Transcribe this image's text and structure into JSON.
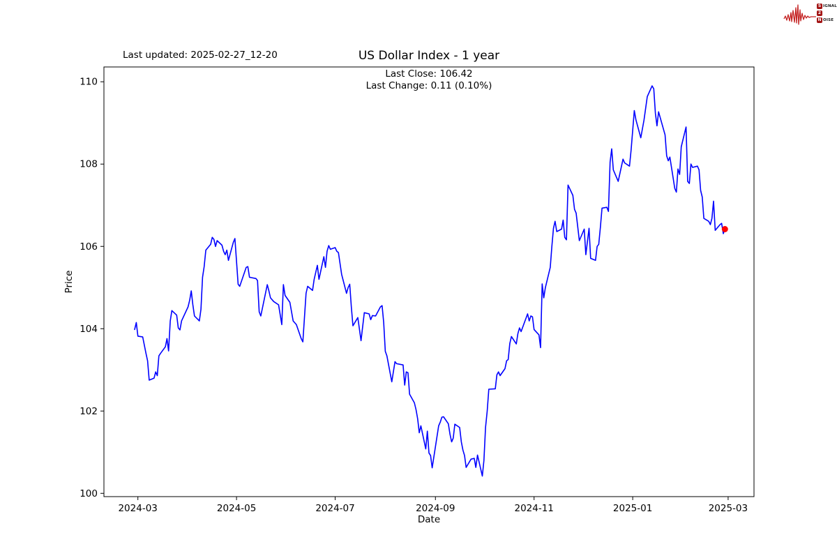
{
  "header": {
    "last_updated": "Last updated: 2025-02-27_12-20",
    "annotation_line1": "Last Close: 106.42",
    "annotation_line2": "Last Change: 0.11 (0.10%)"
  },
  "logo": {
    "line1_initial": "S",
    "line1_rest": "IGNAL",
    "line2": "2",
    "line3_initial": "N",
    "line3_rest": "OISE",
    "badge_color": "#a31515",
    "waveform_color": "#c42222"
  },
  "colors": {
    "line_blue": "#0000ff",
    "marker_red": "#ff0000",
    "axis_black": "#000000"
  },
  "chart_data": {
    "type": "line",
    "title": "US Dollar Index - 1 year",
    "xlabel": "Date",
    "ylabel": "Price",
    "grid": false,
    "legend": "none",
    "ylim": [
      99.92,
      110.36
    ],
    "xlim": [
      "2024-02-09",
      "2025-03-17"
    ],
    "y_ticks": [
      100,
      102,
      104,
      106,
      108,
      110
    ],
    "x_ticks": [
      {
        "date": "2024-03-01",
        "label": "2024-03"
      },
      {
        "date": "2024-05-01",
        "label": "2024-05"
      },
      {
        "date": "2024-07-01",
        "label": "2024-07"
      },
      {
        "date": "2024-09-01",
        "label": "2024-09"
      },
      {
        "date": "2024-11-01",
        "label": "2024-11"
      },
      {
        "date": "2025-01-01",
        "label": "2025-01"
      },
      {
        "date": "2025-03-01",
        "label": "2025-03"
      }
    ],
    "last_close": 106.42,
    "last_change": "0.11 (0.10%)",
    "series": [
      {
        "name": "US Dollar Index",
        "points": [
          [
            "2024-02-28",
            103.98
          ],
          [
            "2024-02-29",
            104.15
          ],
          [
            "2024-03-01",
            103.82
          ],
          [
            "2024-03-04",
            103.8
          ],
          [
            "2024-03-06",
            103.4
          ],
          [
            "2024-03-07",
            103.22
          ],
          [
            "2024-03-08",
            102.75
          ],
          [
            "2024-03-11",
            102.8
          ],
          [
            "2024-03-12",
            102.95
          ],
          [
            "2024-03-13",
            102.86
          ],
          [
            "2024-03-14",
            103.34
          ],
          [
            "2024-03-15",
            103.4
          ],
          [
            "2024-03-18",
            103.56
          ],
          [
            "2024-03-19",
            103.76
          ],
          [
            "2024-03-20",
            103.46
          ],
          [
            "2024-03-21",
            104.19
          ],
          [
            "2024-03-22",
            104.44
          ],
          [
            "2024-03-25",
            104.33
          ],
          [
            "2024-03-26",
            104.02
          ],
          [
            "2024-03-27",
            103.97
          ],
          [
            "2024-03-28",
            104.19
          ],
          [
            "2024-04-01",
            104.53
          ],
          [
            "2024-04-02",
            104.69
          ],
          [
            "2024-04-03",
            104.92
          ],
          [
            "2024-04-04",
            104.58
          ],
          [
            "2024-04-05",
            104.31
          ],
          [
            "2024-04-08",
            104.19
          ],
          [
            "2024-04-09",
            104.47
          ],
          [
            "2024-04-10",
            105.25
          ],
          [
            "2024-04-11",
            105.51
          ],
          [
            "2024-04-12",
            105.91
          ],
          [
            "2024-04-15",
            106.05
          ],
          [
            "2024-04-16",
            106.22
          ],
          [
            "2024-04-17",
            106.17
          ],
          [
            "2024-04-18",
            106.0
          ],
          [
            "2024-04-19",
            106.14
          ],
          [
            "2024-04-22",
            106.03
          ],
          [
            "2024-04-23",
            105.88
          ],
          [
            "2024-04-24",
            105.8
          ],
          [
            "2024-04-25",
            105.91
          ],
          [
            "2024-04-26",
            105.66
          ],
          [
            "2024-04-29",
            106.1
          ],
          [
            "2024-04-30",
            106.19
          ],
          [
            "2024-05-02",
            105.08
          ],
          [
            "2024-05-03",
            105.03
          ],
          [
            "2024-05-07",
            105.49
          ],
          [
            "2024-05-08",
            105.51
          ],
          [
            "2024-05-09",
            105.25
          ],
          [
            "2024-05-13",
            105.22
          ],
          [
            "2024-05-14",
            105.17
          ],
          [
            "2024-05-15",
            104.41
          ],
          [
            "2024-05-16",
            104.31
          ],
          [
            "2024-05-20",
            105.07
          ],
          [
            "2024-05-21",
            104.92
          ],
          [
            "2024-05-22",
            104.75
          ],
          [
            "2024-05-24",
            104.66
          ],
          [
            "2024-05-27",
            104.58
          ],
          [
            "2024-05-29",
            104.1
          ],
          [
            "2024-05-30",
            105.07
          ],
          [
            "2024-05-31",
            104.81
          ],
          [
            "2024-06-03",
            104.64
          ],
          [
            "2024-06-05",
            104.19
          ],
          [
            "2024-06-07",
            104.1
          ],
          [
            "2024-06-10",
            103.76
          ],
          [
            "2024-06-11",
            103.68
          ],
          [
            "2024-06-13",
            104.86
          ],
          [
            "2024-06-14",
            105.03
          ],
          [
            "2024-06-17",
            104.93
          ],
          [
            "2024-06-18",
            105.2
          ],
          [
            "2024-06-20",
            105.54
          ],
          [
            "2024-06-21",
            105.2
          ],
          [
            "2024-06-24",
            105.75
          ],
          [
            "2024-06-25",
            105.49
          ],
          [
            "2024-06-26",
            105.88
          ],
          [
            "2024-06-27",
            106.02
          ],
          [
            "2024-06-28",
            105.93
          ],
          [
            "2024-07-01",
            105.97
          ],
          [
            "2024-07-02",
            105.88
          ],
          [
            "2024-07-03",
            105.85
          ],
          [
            "2024-07-05",
            105.32
          ],
          [
            "2024-07-08",
            104.86
          ],
          [
            "2024-07-09",
            105.0
          ],
          [
            "2024-07-10",
            105.08
          ],
          [
            "2024-07-11",
            104.53
          ],
          [
            "2024-07-12",
            104.07
          ],
          [
            "2024-07-15",
            104.27
          ],
          [
            "2024-07-17",
            103.71
          ],
          [
            "2024-07-19",
            104.39
          ],
          [
            "2024-07-22",
            104.36
          ],
          [
            "2024-07-23",
            104.22
          ],
          [
            "2024-07-24",
            104.32
          ],
          [
            "2024-07-26",
            104.31
          ],
          [
            "2024-07-29",
            104.53
          ],
          [
            "2024-07-30",
            104.56
          ],
          [
            "2024-07-31",
            104.15
          ],
          [
            "2024-08-01",
            103.45
          ],
          [
            "2024-08-02",
            103.34
          ],
          [
            "2024-08-05",
            102.71
          ],
          [
            "2024-08-07",
            103.2
          ],
          [
            "2024-08-08",
            103.15
          ],
          [
            "2024-08-12",
            103.12
          ],
          [
            "2024-08-13",
            102.63
          ],
          [
            "2024-08-14",
            102.95
          ],
          [
            "2024-08-15",
            102.93
          ],
          [
            "2024-08-16",
            102.41
          ],
          [
            "2024-08-19",
            102.2
          ],
          [
            "2024-08-20",
            102.03
          ],
          [
            "2024-08-21",
            101.81
          ],
          [
            "2024-08-22",
            101.47
          ],
          [
            "2024-08-23",
            101.64
          ],
          [
            "2024-08-26",
            101.08
          ],
          [
            "2024-08-27",
            101.51
          ],
          [
            "2024-08-28",
            100.98
          ],
          [
            "2024-08-29",
            100.92
          ],
          [
            "2024-08-30",
            100.62
          ],
          [
            "2024-09-03",
            101.64
          ],
          [
            "2024-09-04",
            101.73
          ],
          [
            "2024-09-05",
            101.85
          ],
          [
            "2024-09-06",
            101.86
          ],
          [
            "2024-09-09",
            101.69
          ],
          [
            "2024-09-10",
            101.44
          ],
          [
            "2024-09-11",
            101.25
          ],
          [
            "2024-09-12",
            101.34
          ],
          [
            "2024-09-13",
            101.68
          ],
          [
            "2024-09-16",
            101.6
          ],
          [
            "2024-09-17",
            101.25
          ],
          [
            "2024-09-18",
            101.05
          ],
          [
            "2024-09-19",
            100.92
          ],
          [
            "2024-09-20",
            100.63
          ],
          [
            "2024-09-23",
            100.83
          ],
          [
            "2024-09-25",
            100.85
          ],
          [
            "2024-09-26",
            100.63
          ],
          [
            "2024-09-27",
            100.93
          ],
          [
            "2024-09-30",
            100.42
          ],
          [
            "2024-10-01",
            100.8
          ],
          [
            "2024-10-02",
            101.6
          ],
          [
            "2024-10-03",
            102.0
          ],
          [
            "2024-10-04",
            102.53
          ],
          [
            "2024-10-08",
            102.54
          ],
          [
            "2024-10-09",
            102.88
          ],
          [
            "2024-10-10",
            102.95
          ],
          [
            "2024-10-11",
            102.86
          ],
          [
            "2024-10-14",
            103.03
          ],
          [
            "2024-10-15",
            103.22
          ],
          [
            "2024-10-16",
            103.25
          ],
          [
            "2024-10-17",
            103.64
          ],
          [
            "2024-10-18",
            103.81
          ],
          [
            "2024-10-21",
            103.63
          ],
          [
            "2024-10-22",
            103.88
          ],
          [
            "2024-10-23",
            104.02
          ],
          [
            "2024-10-24",
            103.93
          ],
          [
            "2024-10-28",
            104.36
          ],
          [
            "2024-10-29",
            104.19
          ],
          [
            "2024-10-30",
            104.31
          ],
          [
            "2024-10-31",
            104.29
          ],
          [
            "2024-11-01",
            103.98
          ],
          [
            "2024-11-04",
            103.85
          ],
          [
            "2024-11-05",
            103.54
          ],
          [
            "2024-11-06",
            105.09
          ],
          [
            "2024-11-07",
            104.75
          ],
          [
            "2024-11-08",
            105.0
          ],
          [
            "2024-11-11",
            105.49
          ],
          [
            "2024-11-12",
            106.0
          ],
          [
            "2024-11-13",
            106.44
          ],
          [
            "2024-11-14",
            106.61
          ],
          [
            "2024-11-15",
            106.36
          ],
          [
            "2024-11-18",
            106.42
          ],
          [
            "2024-11-19",
            106.64
          ],
          [
            "2024-11-20",
            106.22
          ],
          [
            "2024-11-21",
            106.16
          ],
          [
            "2024-11-22",
            107.49
          ],
          [
            "2024-11-25",
            107.24
          ],
          [
            "2024-11-26",
            106.9
          ],
          [
            "2024-11-27",
            106.81
          ],
          [
            "2024-11-29",
            106.14
          ],
          [
            "2024-12-02",
            106.42
          ],
          [
            "2024-12-03",
            105.8
          ],
          [
            "2024-12-05",
            106.44
          ],
          [
            "2024-12-06",
            105.71
          ],
          [
            "2024-12-09",
            105.66
          ],
          [
            "2024-12-10",
            106.0
          ],
          [
            "2024-12-11",
            106.05
          ],
          [
            "2024-12-12",
            106.47
          ],
          [
            "2024-12-13",
            106.93
          ],
          [
            "2024-12-16",
            106.95
          ],
          [
            "2024-12-17",
            106.85
          ],
          [
            "2024-12-18",
            108.05
          ],
          [
            "2024-12-19",
            108.37
          ],
          [
            "2024-12-20",
            107.86
          ],
          [
            "2024-12-23",
            107.58
          ],
          [
            "2024-12-26",
            108.12
          ],
          [
            "2024-12-27",
            108.03
          ],
          [
            "2024-12-30",
            107.95
          ],
          [
            "2024-12-31",
            108.34
          ],
          [
            "2025-01-02",
            109.3
          ],
          [
            "2025-01-03",
            109.07
          ],
          [
            "2025-01-06",
            108.64
          ],
          [
            "2025-01-08",
            109.07
          ],
          [
            "2025-01-10",
            109.64
          ],
          [
            "2025-01-13",
            109.9
          ],
          [
            "2025-01-14",
            109.83
          ],
          [
            "2025-01-15",
            109.24
          ],
          [
            "2025-01-16",
            108.93
          ],
          [
            "2025-01-17",
            109.27
          ],
          [
            "2025-01-21",
            108.71
          ],
          [
            "2025-01-22",
            108.2
          ],
          [
            "2025-01-23",
            108.08
          ],
          [
            "2025-01-24",
            108.17
          ],
          [
            "2025-01-27",
            107.41
          ],
          [
            "2025-01-28",
            107.32
          ],
          [
            "2025-01-29",
            107.88
          ],
          [
            "2025-01-30",
            107.75
          ],
          [
            "2025-01-31",
            108.42
          ],
          [
            "2025-02-03",
            108.9
          ],
          [
            "2025-02-04",
            107.58
          ],
          [
            "2025-02-05",
            107.53
          ],
          [
            "2025-02-06",
            108.0
          ],
          [
            "2025-02-07",
            107.92
          ],
          [
            "2025-02-10",
            107.95
          ],
          [
            "2025-02-11",
            107.86
          ],
          [
            "2025-02-12",
            107.36
          ],
          [
            "2025-02-13",
            107.2
          ],
          [
            "2025-02-14",
            106.68
          ],
          [
            "2025-02-17",
            106.61
          ],
          [
            "2025-02-18",
            106.53
          ],
          [
            "2025-02-19",
            106.68
          ],
          [
            "2025-02-20",
            107.1
          ],
          [
            "2025-02-21",
            106.39
          ],
          [
            "2025-02-24",
            106.53
          ],
          [
            "2025-02-25",
            106.56
          ],
          [
            "2025-02-26",
            106.31
          ],
          [
            "2025-02-27",
            106.42
          ]
        ]
      }
    ]
  }
}
